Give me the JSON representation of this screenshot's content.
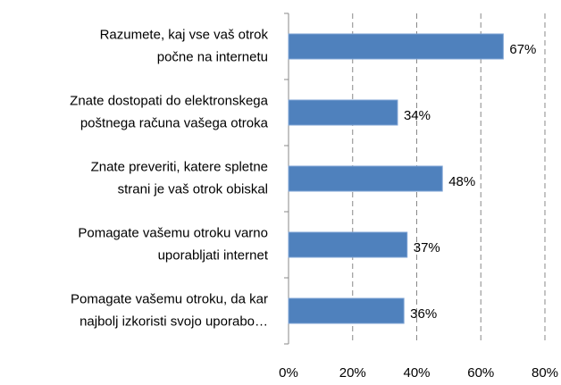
{
  "chart_data": {
    "type": "bar",
    "orientation": "horizontal",
    "categories": [
      [
        "Razumete, kaj vse vaš otrok",
        "počne na internetu"
      ],
      [
        "Znate dostopati do elektronskega",
        "poštnega računa vašega otroka"
      ],
      [
        "Znate preveriti, katere spletne",
        "strani je vaš otrok obiskal"
      ],
      [
        "Pomagate vašemu otroku varno",
        "uporabljati internet"
      ],
      [
        "Pomagate vašemu otroku, da kar",
        "najbolj izkoristi svojo uporabo…"
      ]
    ],
    "values": [
      67,
      34,
      48,
      37,
      36
    ],
    "value_labels": [
      "67%",
      "34%",
      "48%",
      "37%",
      "36%"
    ],
    "color": "#4f81bd",
    "xlim": [
      0,
      80
    ],
    "xticks": [
      {
        "value": 0,
        "label": "0%"
      },
      {
        "value": 20,
        "label": "20%"
      },
      {
        "value": 40,
        "label": "40%"
      },
      {
        "value": 60,
        "label": "60%"
      },
      {
        "value": 80,
        "label": "80%"
      }
    ],
    "grid": true
  }
}
